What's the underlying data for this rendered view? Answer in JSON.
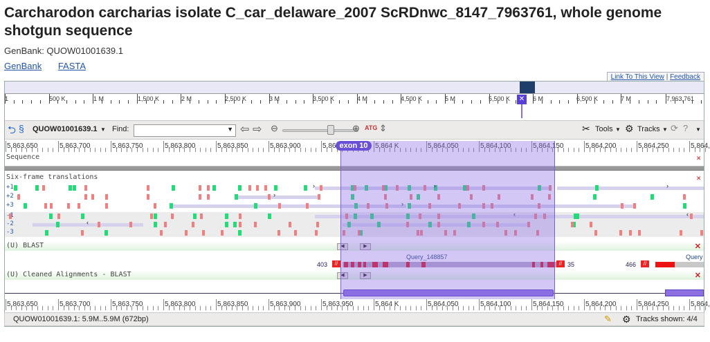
{
  "page": {
    "title": "Carcharodon carcharias isolate C_car_delaware_2007 ScRDnwc_8147_7963761, whole genome shotgun sequence",
    "accession_label": "GenBank: QUOW01001639.1",
    "links": [
      "GenBank",
      "FASTA"
    ],
    "link_to_view": "Link To This View",
    "feedback": "Feedback",
    "separator": "|"
  },
  "overview": {
    "labels": [
      "1",
      "500 K",
      "1 M",
      "1,500 K",
      "2 M",
      "2,500 K",
      "3 M",
      "3,500 K",
      "4 M",
      "4,500 K",
      "5 M",
      "5,500 K",
      "6 M",
      "6,500 K",
      "7 M",
      "7,963,761"
    ],
    "pin_glyph": "✕"
  },
  "toolbar": {
    "seq_id": "QUOW01001639.1",
    "find_label": "Find:",
    "tools_label": "Tools",
    "tracks_label": "Tracks",
    "help_glyph": "?"
  },
  "ruler": {
    "labels": [
      "5,863,650",
      "5,863,700",
      "5,863,750",
      "5,863,800",
      "5,863,850",
      "5,863,900",
      "5,863,950",
      "5,864 K",
      "5,864,050",
      "5,864,100",
      "5,864,150",
      "5,864,200",
      "5,864,250",
      "5,864,3"
    ],
    "top_partial": "5,86"
  },
  "exon_label": "exon 10",
  "tracks": {
    "sequence": "Sequence",
    "six_frame": "Six-frame translations",
    "frames": [
      "+1",
      "+2",
      "+3",
      "-1",
      "-2",
      "-3"
    ],
    "blast": "(U) BLAST",
    "cleaned": "(U) Cleaned Alignments - BLAST",
    "hit_left": "403",
    "hit_right": "35",
    "hit2_left": "466",
    "query_label": "Query_148857",
    "query_partial": "Query",
    "close": "✕"
  },
  "status": {
    "range": "QUOW01001639.1: 5.9M..5.9M (672bp)",
    "tracks_shown": "Tracks shown: 4/4"
  },
  "colors": {
    "accent": "#6a4fd8",
    "start_codon": "#22dd77",
    "stop_codon": "#f08080",
    "hit": "#dd1122"
  }
}
